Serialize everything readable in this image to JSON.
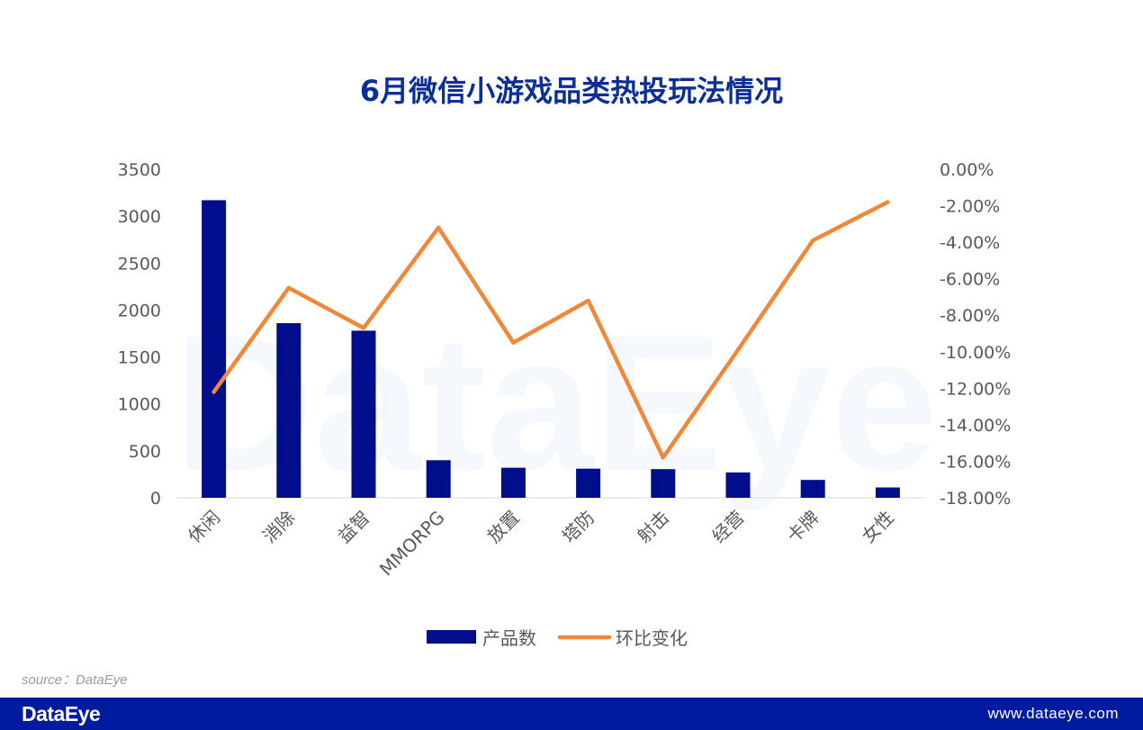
{
  "title": "6月微信小游戏品类热投玩法情况",
  "source": "source：DataEye",
  "footer": {
    "logo": "DataEye",
    "url": "www.dataeye.com"
  },
  "watermark": "DataEye",
  "colors": {
    "bar": "#000e8c",
    "line": "#f0883a",
    "title": "#0b2f97",
    "footer_bg": "#001aa0",
    "axis_text": "#595959"
  },
  "chart_data": {
    "type": "bar",
    "categories": [
      "休闲",
      "消除",
      "益智",
      "MMORPG",
      "放置",
      "塔防",
      "射击",
      "经营",
      "卡牌",
      "女性"
    ],
    "series": [
      {
        "name": "产品数",
        "type": "bar",
        "axis": "left",
        "values": [
          3170,
          1860,
          1780,
          400,
          320,
          310,
          305,
          270,
          190,
          110
        ]
      },
      {
        "name": "环比变化",
        "type": "line",
        "axis": "right",
        "values": [
          -12.2,
          -6.5,
          -8.7,
          -3.2,
          -9.5,
          -7.2,
          -15.8,
          -9.9,
          -3.9,
          -1.8
        ]
      }
    ],
    "y_left": {
      "ylim": [
        0,
        3500
      ],
      "ticks": [
        "3500",
        "3000",
        "2500",
        "2000",
        "1500",
        "1000",
        "500",
        "0"
      ]
    },
    "y_right": {
      "ylim": [
        -18,
        0
      ],
      "ticks": [
        "0.00%",
        "-2.00%",
        "-4.00%",
        "-6.00%",
        "-8.00%",
        "-10.00%",
        "-12.00%",
        "-14.00%",
        "-16.00%",
        "-18.00%"
      ]
    },
    "legend": {
      "position": "bottom",
      "items": [
        "产品数",
        "环比变化"
      ]
    },
    "grid": false
  }
}
